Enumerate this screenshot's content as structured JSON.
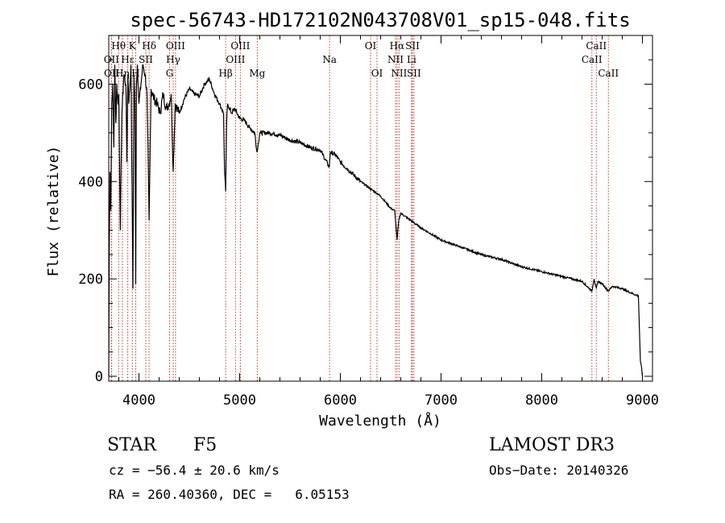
{
  "chart_data": {
    "type": "line",
    "title": "spec-56743-HD172102N043708V01_sp15-048.fits",
    "xlabel": "Wavelength (Å)",
    "ylabel": "Flux (relative)",
    "xlim": [
      3700,
      9100
    ],
    "ylim": [
      -10,
      700
    ],
    "xticks": [
      4000,
      5000,
      6000,
      7000,
      8000,
      9000
    ],
    "yticks": [
      0,
      200,
      400,
      600
    ],
    "series": [
      {
        "name": "spectrum",
        "x": [
          3700,
          3705,
          3712,
          3720,
          3730,
          3740,
          3750,
          3760,
          3770,
          3780,
          3790,
          3800,
          3815,
          3830,
          3850,
          3870,
          3880,
          3890,
          3900,
          3920,
          3935,
          3940,
          3950,
          3960,
          3968,
          3975,
          3985,
          4000,
          4020,
          4040,
          4060,
          4080,
          4101,
          4120,
          4150,
          4180,
          4210,
          4240,
          4270,
          4300,
          4320,
          4340,
          4360,
          4400,
          4450,
          4500,
          4550,
          4600,
          4650,
          4700,
          4750,
          4800,
          4840,
          4850,
          4861,
          4870,
          4880,
          4920,
          4950,
          5000,
          5050,
          5100,
          5150,
          5172,
          5200,
          5300,
          5400,
          5500,
          5600,
          5700,
          5800,
          5890,
          5900,
          5950,
          6000,
          6100,
          6200,
          6300,
          6400,
          6500,
          6540,
          6563,
          6580,
          6600,
          6700,
          6800,
          7000,
          7200,
          7400,
          7600,
          7800,
          8000,
          8200,
          8400,
          8498,
          8520,
          8542,
          8560,
          8600,
          8662,
          8700,
          8800,
          8900,
          8960,
          8980,
          8990,
          9000
        ],
        "y": [
          0,
          260,
          420,
          340,
          560,
          600,
          470,
          640,
          520,
          600,
          560,
          580,
          300,
          540,
          620,
          600,
          440,
          620,
          560,
          640,
          300,
          180,
          620,
          560,
          190,
          600,
          640,
          560,
          600,
          640,
          620,
          580,
          320,
          590,
          570,
          560,
          540,
          580,
          550,
          560,
          580,
          420,
          560,
          540,
          570,
          590,
          580,
          575,
          600,
          610,
          580,
          560,
          540,
          420,
          380,
          520,
          560,
          540,
          550,
          530,
          525,
          510,
          500,
          460,
          500,
          500,
          495,
          485,
          480,
          470,
          465,
          430,
          460,
          455,
          440,
          420,
          400,
          385,
          370,
          345,
          340,
          280,
          320,
          335,
          320,
          305,
          280,
          265,
          250,
          240,
          225,
          215,
          205,
          195,
          175,
          200,
          180,
          195,
          190,
          175,
          185,
          180,
          170,
          165,
          30,
          20,
          0
        ]
      }
    ],
    "lines": [
      {
        "label": "Hθ",
        "wavelength": 3798,
        "row": 0
      },
      {
        "label": "OII",
        "wavelength": 3727,
        "row": 1
      },
      {
        "label": "OII",
        "wavelength": 3729,
        "row": 2
      },
      {
        "label": "Hη",
        "wavelength": 3835,
        "row": 2
      },
      {
        "label": "K",
        "wavelength": 3934,
        "row": 0
      },
      {
        "label": "Hε",
        "wavelength": 3889,
        "row": 1
      },
      {
        "label": "H",
        "wavelength": 3968,
        "row": 2
      },
      {
        "label": "SII",
        "wavelength": 4068,
        "row": 1
      },
      {
        "label": "Hδ",
        "wavelength": 4101,
        "row": 0
      },
      {
        "label": "OIII",
        "wavelength": 4363,
        "row": 0
      },
      {
        "label": "Hγ",
        "wavelength": 4340,
        "row": 1
      },
      {
        "label": "G",
        "wavelength": 4304,
        "row": 2
      },
      {
        "label": "Hβ",
        "wavelength": 4861,
        "row": 2
      },
      {
        "label": "OIII",
        "wavelength": 5007,
        "row": 0
      },
      {
        "label": "OIII",
        "wavelength": 4959,
        "row": 1
      },
      {
        "label": "Mg",
        "wavelength": 5175,
        "row": 2
      },
      {
        "label": "Na",
        "wavelength": 5893,
        "row": 1
      },
      {
        "label": "OI",
        "wavelength": 6300,
        "row": 0
      },
      {
        "label": "OI",
        "wavelength": 6364,
        "row": 2
      },
      {
        "label": "Hα",
        "wavelength": 6563,
        "row": 0
      },
      {
        "label": "SII",
        "wavelength": 6716,
        "row": 0
      },
      {
        "label": "NII",
        "wavelength": 6548,
        "row": 1
      },
      {
        "label": "Li",
        "wavelength": 6707,
        "row": 1
      },
      {
        "label": "NII",
        "wavelength": 6583,
        "row": 2
      },
      {
        "label": "SII",
        "wavelength": 6731,
        "row": 2
      },
      {
        "label": "CaII",
        "wavelength": 8542,
        "row": 0
      },
      {
        "label": "CaII",
        "wavelength": 8498,
        "row": 1
      },
      {
        "label": "CaII",
        "wavelength": 8662,
        "row": 2
      }
    ]
  },
  "info": {
    "class": "STAR",
    "subclass": "F5",
    "survey": "LAMOST DR3",
    "cz": "cz = −56.4 ± 20.6 km/s",
    "obs_date": "Obs−Date: 20140326",
    "radec": "RA = 260.40360, DEC =   6.05153"
  },
  "colors": {
    "line_marker": "#c0392b",
    "spectrum": "#000000"
  }
}
